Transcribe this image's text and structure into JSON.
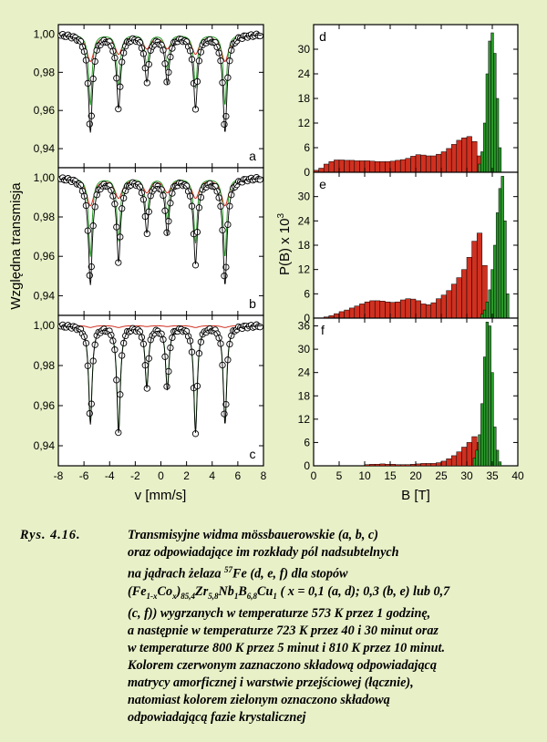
{
  "chart_data": [
    {
      "type": "scatter",
      "panel": "a",
      "ylabel": "Względna transmisja",
      "xlim": [
        -8,
        8
      ],
      "ylim": [
        0.93,
        1.005
      ],
      "yticks": [
        "1,00",
        "0,98",
        "0,96",
        "0,94"
      ],
      "line_positions": [
        -5.5,
        -3.3,
        -1.1,
        0.5,
        2.7,
        5.0
      ],
      "green_depths": [
        0.037,
        0.028,
        0.017,
        0.018,
        0.028,
        0.037
      ],
      "red_depths": [
        0.014,
        0.01,
        0.007,
        0.007,
        0.01,
        0.014
      ],
      "series": [
        {
          "name": "",
          "color": "#d03020"
        },
        {
          "name": "",
          "color": "#2a9a2a"
        }
      ]
    },
    {
      "type": "scatter",
      "panel": "b",
      "xlim": [
        -8,
        8
      ],
      "ylim": [
        0.93,
        1.005
      ],
      "yticks": [
        "1,00",
        "0,98",
        "0,96",
        "0,94"
      ],
      "line_positions": [
        -5.5,
        -3.3,
        -1.1,
        0.5,
        2.7,
        5.0
      ],
      "green_depths": [
        0.04,
        0.032,
        0.02,
        0.021,
        0.033,
        0.04
      ],
      "red_depths": [
        0.014,
        0.01,
        0.007,
        0.007,
        0.01,
        0.014
      ]
    },
    {
      "type": "scatter",
      "panel": "c",
      "xlabel": "v [mm/s]",
      "xlim": [
        -8,
        8
      ],
      "ylim": [
        0.93,
        1.005
      ],
      "xticks": [
        "-8",
        "-6",
        "-4",
        "-2",
        "0",
        "2",
        "4",
        "6",
        "8"
      ],
      "yticks": [
        "1,00",
        "0,98",
        "0,96",
        "0,94"
      ],
      "line_positions": [
        -5.5,
        -3.3,
        -1.1,
        0.5,
        2.7,
        5.0
      ],
      "green_depths": [
        0.048,
        0.052,
        0.03,
        0.031,
        0.052,
        0.048
      ],
      "red_depths": [
        0.001,
        0.001,
        0.0005,
        0.0005,
        0.001,
        0.001
      ]
    },
    {
      "type": "bar",
      "panel": "d",
      "xlim": [
        0,
        40
      ],
      "ylim": [
        0,
        36
      ],
      "yticks": [
        "0",
        "6",
        "12",
        "18",
        "24",
        "30"
      ],
      "red_x": [
        0.5,
        1.5,
        2.5,
        3.5,
        4.5,
        5.5,
        6.5,
        7.5,
        8.5,
        9.5,
        10.5,
        11.5,
        12.5,
        13.5,
        14.5,
        15.5,
        16.5,
        17.5,
        18.5,
        19.5,
        20.5,
        21.5,
        22.5,
        23.5,
        24.5,
        25.5,
        26.5,
        27.5,
        28.5,
        29.5,
        30.5,
        31.5,
        32.5
      ],
      "red_values": [
        0.5,
        1.0,
        2.0,
        2.6,
        3.0,
        3.0,
        2.9,
        2.9,
        2.8,
        2.8,
        2.8,
        2.7,
        2.6,
        2.6,
        2.6,
        2.7,
        2.9,
        3.1,
        3.4,
        3.9,
        4.3,
        4.2,
        4.0,
        4.0,
        4.4,
        5.0,
        5.8,
        6.8,
        7.8,
        8.4,
        8.7,
        7.5,
        4.0
      ],
      "green_x": [
        32.5,
        33.0,
        33.5,
        34.0,
        34.5,
        35.0,
        35.5,
        36.0,
        36.5
      ],
      "green_values": [
        2,
        5,
        12,
        24,
        32,
        34,
        29,
        18,
        6
      ]
    },
    {
      "type": "bar",
      "panel": "e",
      "ylabel": "P(B) x 10",
      "ylabel_sup": "3",
      "xlim": [
        0,
        40
      ],
      "ylim": [
        0,
        36
      ],
      "yticks": [
        "0",
        "6",
        "12",
        "18",
        "24",
        "30"
      ],
      "red_x": [
        2.5,
        3.5,
        4.5,
        5.5,
        6.5,
        7.5,
        8.5,
        9.5,
        10.5,
        11.5,
        12.5,
        13.5,
        14.5,
        15.5,
        16.5,
        17.5,
        18.5,
        19.5,
        20.5,
        21.5,
        22.5,
        23.5,
        24.5,
        25.5,
        26.5,
        27.5,
        28.5,
        29.5,
        30.5,
        31.5,
        32.5,
        33.5
      ],
      "red_values": [
        0.3,
        0.6,
        1.1,
        1.6,
        2.0,
        2.5,
        3.0,
        3.5,
        4.0,
        4.3,
        4.3,
        4.2,
        4.0,
        3.9,
        4.0,
        4.5,
        4.8,
        4.7,
        4.3,
        3.5,
        3.3,
        3.8,
        4.8,
        5.7,
        6.8,
        8.4,
        10.0,
        12.0,
        15.0,
        19.0,
        21.0,
        13.0
      ],
      "green_x": [
        33.0,
        33.5,
        34.0,
        34.5,
        35.0,
        35.5,
        36.0,
        36.5,
        37.0,
        37.5,
        38.0
      ],
      "green_values": [
        1,
        2,
        4,
        7,
        12,
        18,
        26,
        32,
        35,
        24,
        6
      ]
    },
    {
      "type": "bar",
      "panel": "f",
      "xlabel": "B [T]",
      "xlim": [
        0,
        40
      ],
      "ylim": [
        0,
        38
      ],
      "xticks": [
        "0",
        "5",
        "10",
        "15",
        "20",
        "25",
        "30",
        "35",
        "40"
      ],
      "yticks": [
        "0",
        "6",
        "12",
        "18",
        "24",
        "30",
        "36"
      ],
      "red_x": [
        10.5,
        11.5,
        12.5,
        13.5,
        14.5,
        15.5,
        16.5,
        17.5,
        18.5,
        19.5,
        20.5,
        21.5,
        22.5,
        23.5,
        24.5,
        25.5,
        26.5,
        27.5,
        28.5,
        29.5,
        30.5,
        31.5,
        32.5
      ],
      "red_values": [
        0.3,
        0.4,
        0.4,
        0.5,
        0.4,
        0.4,
        0.3,
        0.3,
        0.3,
        0.4,
        0.5,
        0.6,
        0.6,
        0.6,
        0.8,
        1.2,
        1.8,
        2.6,
        3.6,
        4.8,
        6.0,
        7.5,
        6.0
      ],
      "green_x": [
        31.5,
        32.0,
        32.5,
        33.0,
        33.5,
        34.0,
        34.5,
        35.0,
        35.5,
        36.0,
        36.5
      ],
      "green_values": [
        2,
        4,
        8,
        16,
        28,
        37,
        36,
        24,
        10,
        4,
        1
      ]
    }
  ],
  "caption": {
    "number": "Rys. 4.16.",
    "lines": [
      "Transmisyjne widma mössbauerowskie (a, b, c)",
      "oraz odpowiadające im rozkłady pól nadsubtelnych",
      "na jądrach żelaza",
      "57",
      "Fe (d, e, f) dla stopów",
      "(Fe",
      "1-x",
      "Co",
      "x",
      ")",
      "85,4",
      "Zr",
      "5,8",
      "Nb",
      "1",
      "B",
      "6,8",
      "Cu",
      "1",
      " ( x = 0,1 (a, d); 0,3 (b, e) lub 0,7",
      "(c, f)) wygrzanych w temperaturze 573 K przez 1 godzinę,",
      "a następnie w temperaturze 723 K przez 40 i 30 minut oraz",
      "w temperaturze 800 K przez 5 minut i 810 K przez 10 minut.",
      "Kolorem czerwonym zaznaczono składową odpowiadającą",
      "matrycy amorficznej i warstwie przejściowej (łącznie),",
      "natomiast kolorem zielonym oznaczono składową",
      "odpowiadającą fazie krystalicznej"
    ]
  }
}
